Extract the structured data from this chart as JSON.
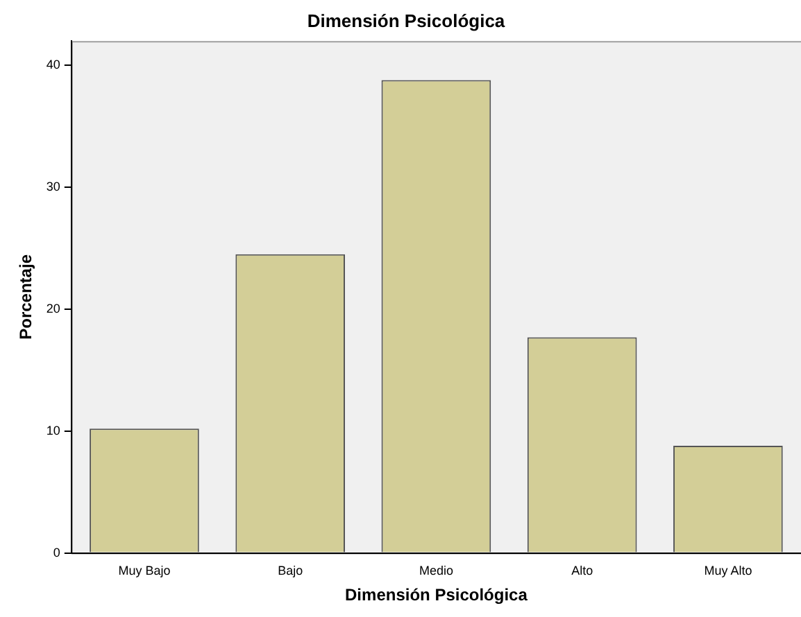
{
  "chart_data": {
    "type": "bar",
    "title": "Dimensión Psicológica",
    "xlabel": "Dimensión Psicológica",
    "ylabel": "Porcentaje",
    "categories": [
      "Muy Bajo",
      "Bajo",
      "Medio",
      "Alto",
      "Muy Alto"
    ],
    "values": [
      10.2,
      24.5,
      38.8,
      17.7,
      8.8
    ],
    "color": "#d3ce97",
    "ylim": [
      0,
      42
    ],
    "yticks": [
      0,
      10,
      20,
      30,
      40
    ],
    "grid": false,
    "legend": false
  }
}
